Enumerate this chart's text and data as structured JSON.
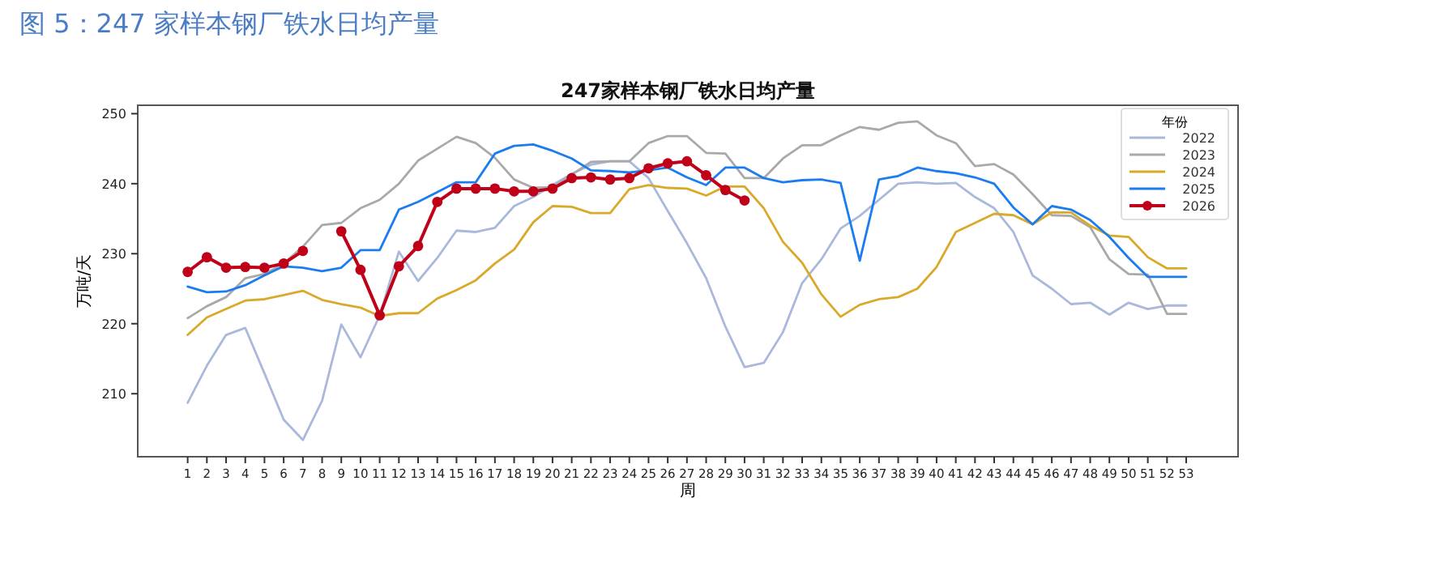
{
  "chart_data": {
    "type": "line",
    "title": "图 5：247 家样本钢厂铁水日均产量",
    "subtitle": "247家样本钢厂铁水日均产量",
    "xlabel": "周",
    "ylabel": "万吨/天",
    "legend_title": "年份",
    "legend": "top right",
    "x": [
      1,
      2,
      3,
      4,
      5,
      6,
      7,
      8,
      9,
      10,
      11,
      12,
      13,
      14,
      15,
      16,
      17,
      18,
      19,
      20,
      21,
      22,
      23,
      24,
      25,
      26,
      27,
      28,
      29,
      30,
      31,
      32,
      33,
      34,
      35,
      36,
      37,
      38,
      39,
      40,
      41,
      42,
      43,
      44,
      45,
      46,
      47,
      48,
      49,
      50,
      51,
      52,
      53
    ],
    "xlim": [
      -1.6,
      55.7
    ],
    "xticks": [
      1,
      2,
      3,
      4,
      5,
      6,
      7,
      8,
      9,
      10,
      11,
      12,
      13,
      14,
      15,
      16,
      17,
      18,
      19,
      20,
      21,
      22,
      23,
      24,
      25,
      26,
      27,
      28,
      29,
      30,
      31,
      32,
      33,
      34,
      35,
      36,
      37,
      38,
      39,
      40,
      41,
      42,
      43,
      44,
      45,
      46,
      47,
      48,
      49,
      50,
      51,
      52,
      53
    ],
    "ylim": [
      201,
      251.2
    ],
    "yticks": [
      210,
      220,
      230,
      240,
      250
    ],
    "series": [
      {
        "name": "2022",
        "color": "#aab8dc",
        "values": [
          208.7,
          214.0,
          218.4,
          219.4,
          212.9,
          206.3,
          203.4,
          209.0,
          219.9,
          215.2,
          221.2,
          230.3,
          226.1,
          229.4,
          233.3,
          233.1,
          233.7,
          236.8,
          238.1,
          239.8,
          241.4,
          242.7,
          243.2,
          243.2,
          240.8,
          236.1,
          231.5,
          226.5,
          219.6,
          213.8,
          214.4,
          218.8,
          225.8,
          229.2,
          233.6,
          235.4,
          237.7,
          240.0,
          240.2,
          240.0,
          240.1,
          238.1,
          236.5,
          233.1,
          226.9,
          225.0,
          222.8,
          223.0,
          221.3,
          223.0,
          222.1,
          222.6,
          222.6
        ]
      },
      {
        "name": "2023",
        "color": "#a9a9a9",
        "values": [
          220.8,
          222.5,
          223.8,
          226.5,
          227.1,
          228.6,
          231.0,
          234.1,
          234.4,
          236.5,
          237.7,
          240.0,
          243.3,
          245.0,
          246.7,
          245.8,
          243.7,
          240.6,
          239.4,
          239.5,
          241.3,
          243.1,
          243.2,
          243.2,
          245.8,
          246.8,
          246.8,
          244.4,
          244.3,
          240.8,
          240.8,
          243.6,
          245.5,
          245.5,
          246.9,
          248.1,
          247.7,
          248.7,
          248.9,
          246.9,
          245.8,
          242.5,
          242.8,
          241.3,
          238.5,
          235.5,
          235.4,
          233.8,
          229.2,
          227.1,
          227.0,
          221.4,
          221.4
        ]
      },
      {
        "name": "2024",
        "color": "#d9a92a",
        "values": [
          218.4,
          220.9,
          222.1,
          223.3,
          223.5,
          224.1,
          224.7,
          223.4,
          222.8,
          222.3,
          221.1,
          221.5,
          221.5,
          223.6,
          224.8,
          226.2,
          228.6,
          230.6,
          234.5,
          236.8,
          236.7,
          235.8,
          235.8,
          239.2,
          239.8,
          239.4,
          239.3,
          238.3,
          239.6,
          239.6,
          236.5,
          231.7,
          228.7,
          224.2,
          221.0,
          222.7,
          223.5,
          223.8,
          225.0,
          228.1,
          233.1,
          234.4,
          235.7,
          235.5,
          234.2,
          235.9,
          235.9,
          234.0,
          232.6,
          232.4,
          229.5,
          227.9,
          227.9
        ]
      },
      {
        "name": "2025",
        "color": "#1a7cf0",
        "values": [
          225.3,
          224.5,
          224.6,
          225.5,
          226.9,
          228.2,
          228.0,
          227.5,
          228.0,
          230.5,
          230.5,
          236.3,
          237.4,
          238.8,
          240.2,
          240.2,
          244.3,
          245.4,
          245.6,
          244.7,
          243.6,
          241.9,
          241.8,
          241.6,
          241.9,
          242.3,
          240.9,
          239.8,
          242.3,
          242.3,
          240.8,
          240.2,
          240.5,
          240.6,
          240.1,
          229.0,
          240.6,
          241.1,
          242.3,
          241.8,
          241.5,
          240.9,
          240.0,
          236.6,
          234.2,
          236.8,
          236.3,
          234.8,
          232.4,
          229.4,
          226.7,
          226.7,
          226.7
        ]
      },
      {
        "name": "2026",
        "color": "#c00018",
        "marker": "circle",
        "values": [
          227.4,
          229.5,
          228.0,
          228.1,
          228.0,
          228.6,
          230.4,
          null,
          233.2,
          227.7,
          221.2,
          228.2,
          231.1,
          237.4,
          239.3,
          239.3,
          239.3,
          238.9,
          238.9,
          239.3,
          240.8,
          240.9,
          240.6,
          240.8,
          242.2,
          242.9,
          243.2,
          241.2,
          239.1,
          237.6,
          null,
          null,
          null,
          null,
          null,
          null,
          null,
          null,
          null,
          null,
          null,
          null,
          null,
          null,
          null,
          null,
          null,
          null,
          null,
          null,
          null,
          null,
          null
        ]
      }
    ]
  }
}
